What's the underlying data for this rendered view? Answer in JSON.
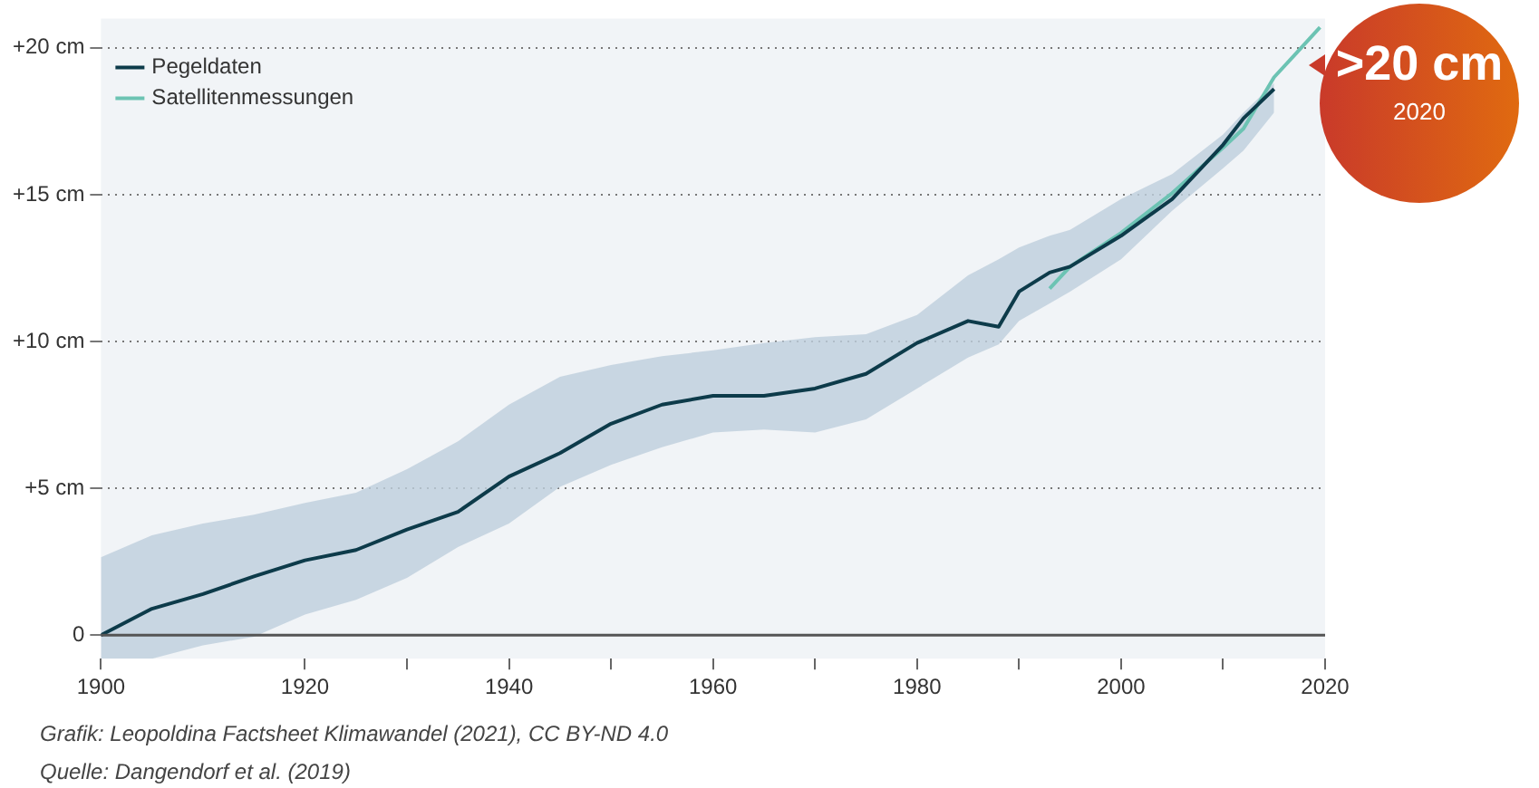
{
  "chart_data": {
    "type": "line",
    "x": [
      1900,
      1905,
      1910,
      1915,
      1920,
      1925,
      1930,
      1935,
      1940,
      1945,
      1950,
      1955,
      1960,
      1965,
      1970,
      1975,
      1980,
      1985,
      1988,
      1990,
      1993,
      1995,
      2000,
      2005,
      2010,
      2012,
      2015
    ],
    "series": [
      {
        "name": "Pegeldaten",
        "color": "#0d3b4a",
        "values": [
          0,
          0.9,
          1.4,
          2.0,
          2.55,
          2.9,
          3.6,
          4.2,
          5.4,
          6.2,
          7.2,
          7.85,
          8.15,
          8.15,
          8.4,
          8.9,
          9.95,
          10.7,
          10.5,
          11.7,
          12.35,
          12.55,
          13.6,
          14.85,
          16.7,
          17.6,
          18.6
        ],
        "lower": [
          -0.8,
          -0.8,
          -0.35,
          -0.05,
          0.7,
          1.2,
          1.95,
          3.0,
          3.8,
          5.05,
          5.8,
          6.4,
          6.9,
          7.0,
          6.9,
          7.35,
          8.4,
          9.45,
          9.9,
          10.7,
          11.3,
          11.7,
          12.8,
          14.45,
          15.9,
          16.5,
          17.8
        ],
        "upper": [
          2.65,
          3.4,
          3.8,
          4.1,
          4.5,
          4.85,
          5.65,
          6.6,
          7.85,
          8.8,
          9.2,
          9.5,
          9.7,
          9.95,
          10.15,
          10.25,
          10.9,
          12.25,
          12.8,
          13.2,
          13.6,
          13.8,
          14.85,
          15.7,
          17.05,
          17.8,
          18.8
        ]
      },
      {
        "name": "Satellitenmessungen",
        "color": "#6cc3b3",
        "x": [
          1993,
          1995,
          2000,
          2005,
          2010,
          2012,
          2015,
          2017,
          2019.5
        ],
        "values": [
          11.8,
          12.55,
          13.7,
          15.05,
          16.6,
          17.25,
          19.0,
          19.75,
          20.7
        ]
      }
    ],
    "xlim": [
      1900,
      2020
    ],
    "xticks": [
      1900,
      1920,
      {
        "value": 1930,
        "label": null
      },
      1940,
      {
        "value": 1950,
        "label": null
      },
      1960,
      {
        "value": 1970,
        "label": null
      },
      1980,
      {
        "value": 1990,
        "label": null
      },
      2000,
      {
        "value": 2010,
        "label": null
      },
      2020
    ],
    "ylim": [
      -0.8,
      21
    ],
    "yticks": [
      0,
      {
        "value": 5,
        "label": "+5 cm"
      },
      {
        "value": 10,
        "label": "+10 cm"
      },
      {
        "value": 15,
        "label": "+15 cm"
      },
      {
        "value": 20,
        "label": "+20 cm"
      }
    ],
    "ref_lines": [
      {
        "axis": "y",
        "value": 0,
        "color": "#555555"
      }
    ],
    "grid": "y",
    "legend": "top left",
    "marker": "none",
    "line_style": "solid",
    "annotations": [
      ">20 cm",
      "2020",
      "Grafik: Leopoldina Factsheet Klimawandel (2021), CC BY-ND 4.0",
      "Quelle: Dangendorf et al. (2019)"
    ]
  }
}
